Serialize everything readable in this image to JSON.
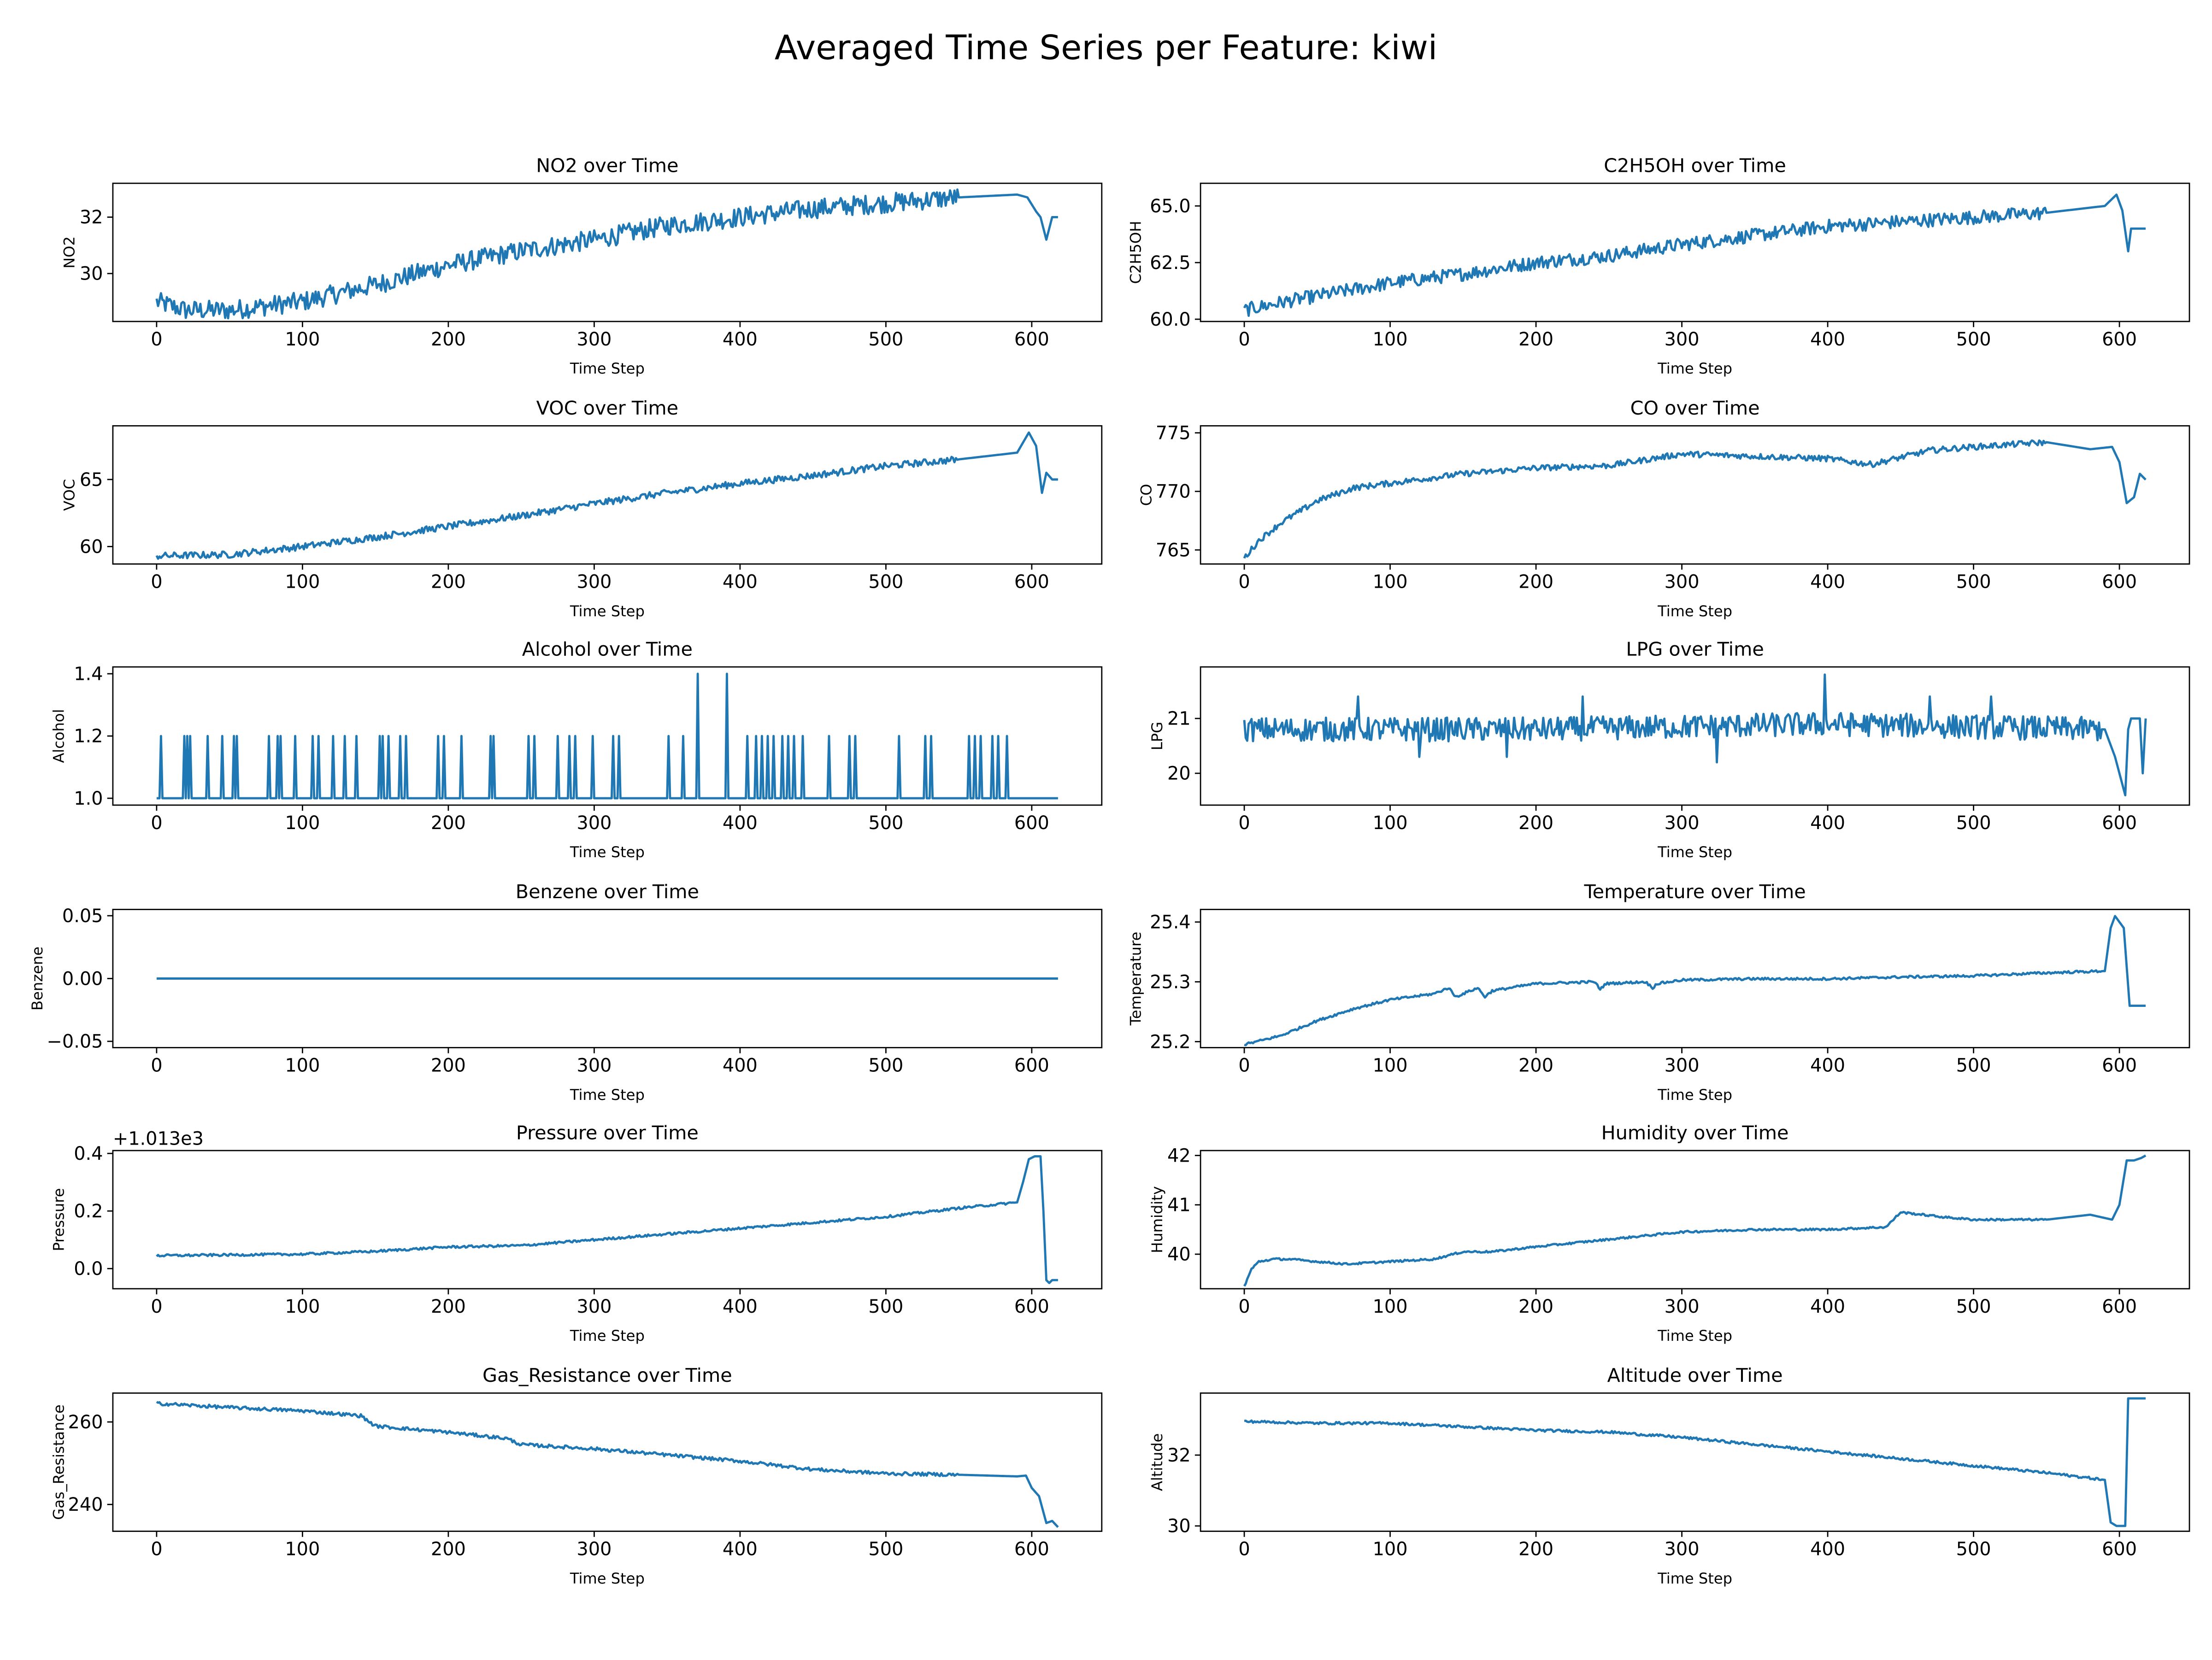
{
  "figure": {
    "title": "Averaged Time Series per Feature: kiwi",
    "line_color": "#1f77b4",
    "xlabel": "Time Step"
  },
  "chart_data": [
    {
      "type": "line",
      "title": "NO2 over Time",
      "xlabel": "Time Step",
      "ylabel": "NO2",
      "xlim": [
        -30,
        648
      ],
      "ylim": [
        28.3,
        33.2
      ],
      "xticks": [
        0,
        100,
        200,
        300,
        400,
        500,
        600
      ],
      "yticks": [
        30,
        32
      ],
      "ytick_labels": [
        "30",
        "32"
      ],
      "noise": 0.35,
      "spikes": [],
      "series": [
        {
          "x": [
            0,
            20,
            50,
            100,
            150,
            200,
            250,
            300,
            350,
            400,
            450,
            500,
            550,
            590,
            597,
            603,
            606,
            610,
            614,
            618
          ],
          "y": [
            29.0,
            28.7,
            28.7,
            29.0,
            29.6,
            30.3,
            30.8,
            31.2,
            31.7,
            32.0,
            32.3,
            32.5,
            32.7,
            32.8,
            32.7,
            32.2,
            32.0,
            31.2,
            32.0,
            32.0
          ]
        }
      ]
    },
    {
      "type": "line",
      "title": "C2H5OH over Time",
      "xlabel": "Time Step",
      "ylabel": "C2H5OH",
      "xlim": [
        -30,
        648
      ],
      "ylim": [
        59.9,
        66.0
      ],
      "xticks": [
        0,
        100,
        200,
        300,
        400,
        500,
        600
      ],
      "yticks": [
        60.0,
        62.5,
        65.0
      ],
      "ytick_labels": [
        "60.0",
        "62.5",
        "65.0"
      ],
      "noise": 0.3,
      "spikes": [],
      "series": [
        {
          "x": [
            0,
            30,
            100,
            150,
            200,
            250,
            300,
            350,
            400,
            450,
            500,
            550,
            590,
            598,
            602,
            606,
            608,
            612,
            618
          ],
          "y": [
            60.4,
            60.8,
            61.6,
            62.0,
            62.5,
            62.8,
            63.3,
            63.7,
            64.1,
            64.3,
            64.5,
            64.7,
            65.0,
            65.5,
            64.8,
            63.0,
            64.0,
            64.0,
            64.0
          ]
        }
      ]
    },
    {
      "type": "line",
      "title": "VOC over Time",
      "xlabel": "Time Step",
      "ylabel": "VOC",
      "xlim": [
        -30,
        648
      ],
      "ylim": [
        58.7,
        69.0
      ],
      "xticks": [
        0,
        100,
        200,
        300,
        400,
        500,
        600
      ],
      "yticks": [
        60,
        65
      ],
      "ytick_labels": [
        "60",
        "65"
      ],
      "noise": 0.25,
      "spikes": [],
      "series": [
        {
          "x": [
            0,
            50,
            100,
            150,
            200,
            250,
            300,
            350,
            400,
            450,
            500,
            550,
            590,
            598,
            603,
            607,
            610,
            614,
            618
          ],
          "y": [
            59.3,
            59.4,
            60.0,
            60.7,
            61.5,
            62.3,
            63.2,
            64.0,
            64.7,
            65.3,
            66.0,
            66.5,
            67.0,
            68.5,
            67.5,
            64.0,
            65.5,
            65.0,
            65.0
          ]
        }
      ]
    },
    {
      "type": "line",
      "title": "CO over Time",
      "xlabel": "Time Step",
      "ylabel": "CO",
      "xlim": [
        -30,
        648
      ],
      "ylim": [
        763.8,
        775.6
      ],
      "xticks": [
        0,
        100,
        200,
        300,
        400,
        500,
        600
      ],
      "yticks": [
        765,
        770,
        775
      ],
      "ytick_labels": [
        "765",
        "770",
        "775"
      ],
      "noise": 0.25,
      "spikes": [],
      "series": [
        {
          "x": [
            0,
            10,
            25,
            50,
            75,
            100,
            150,
            200,
            250,
            300,
            350,
            400,
            430,
            470,
            500,
            550,
            580,
            595,
            600,
            605,
            610,
            614,
            618
          ],
          "y": [
            764.3,
            765.8,
            767.3,
            769.2,
            770.3,
            770.7,
            771.5,
            772.0,
            772.2,
            773.2,
            773.0,
            772.8,
            772.3,
            773.5,
            773.8,
            774.2,
            773.6,
            773.8,
            772.5,
            769.0,
            769.5,
            771.5,
            771.0
          ]
        }
      ]
    },
    {
      "type": "line",
      "title": "Alcohol over Time",
      "xlabel": "Time Step",
      "ylabel": "Alcohol",
      "xlim": [
        -30,
        648
      ],
      "ylim": [
        0.978,
        1.422
      ],
      "xticks": [
        0,
        100,
        200,
        300,
        400,
        500,
        600
      ],
      "yticks": [
        1.0,
        1.2,
        1.4
      ],
      "ytick_labels": [
        "1.0",
        "1.2",
        "1.4"
      ],
      "noise": 0,
      "spikes": [
        [
          3,
          1.2
        ],
        [
          19,
          1.2
        ],
        [
          21,
          1.2
        ],
        [
          23,
          1.2
        ],
        [
          35,
          1.2
        ],
        [
          45,
          1.2
        ],
        [
          53,
          1.2
        ],
        [
          55,
          1.2
        ],
        [
          77,
          1.2
        ],
        [
          83,
          1.2
        ],
        [
          85,
          1.2
        ],
        [
          95,
          1.2
        ],
        [
          107,
          1.2
        ],
        [
          111,
          1.2
        ],
        [
          121,
          1.2
        ],
        [
          129,
          1.2
        ],
        [
          137,
          1.2
        ],
        [
          153,
          1.2
        ],
        [
          155,
          1.2
        ],
        [
          159,
          1.2
        ],
        [
          167,
          1.2
        ],
        [
          171,
          1.2
        ],
        [
          193,
          1.2
        ],
        [
          197,
          1.2
        ],
        [
          209,
          1.2
        ],
        [
          229,
          1.2
        ],
        [
          231,
          1.2
        ],
        [
          255,
          1.2
        ],
        [
          259,
          1.2
        ],
        [
          275,
          1.2
        ],
        [
          283,
          1.2
        ],
        [
          287,
          1.2
        ],
        [
          299,
          1.2
        ],
        [
          313,
          1.2
        ],
        [
          317,
          1.2
        ],
        [
          351,
          1.2
        ],
        [
          361,
          1.2
        ],
        [
          371,
          1.4
        ],
        [
          391,
          1.4
        ],
        [
          405,
          1.2
        ],
        [
          411,
          1.2
        ],
        [
          415,
          1.2
        ],
        [
          419,
          1.2
        ],
        [
          423,
          1.2
        ],
        [
          429,
          1.2
        ],
        [
          433,
          1.2
        ],
        [
          437,
          1.2
        ],
        [
          443,
          1.2
        ],
        [
          461,
          1.2
        ],
        [
          475,
          1.2
        ],
        [
          479,
          1.2
        ],
        [
          509,
          1.2
        ],
        [
          527,
          1.2
        ],
        [
          531,
          1.2
        ],
        [
          557,
          1.2
        ],
        [
          561,
          1.2
        ],
        [
          565,
          1.2
        ],
        [
          573,
          1.2
        ],
        [
          577,
          1.2
        ],
        [
          583,
          1.2
        ]
      ],
      "series": [
        {
          "x": [
            0,
            618
          ],
          "y": [
            1.0,
            1.0
          ]
        }
      ]
    },
    {
      "type": "line",
      "title": "LPG over Time",
      "xlabel": "Time Step",
      "ylabel": "LPG",
      "xlim": [
        -30,
        648
      ],
      "ylim": [
        19.42,
        21.94
      ],
      "xticks": [
        0,
        100,
        200,
        300,
        400,
        500,
        600
      ],
      "yticks": [
        20,
        21
      ],
      "ytick_labels": [
        "20",
        "21"
      ],
      "noise": 0.22,
      "spikes": [
        [
          78,
          21.4
        ],
        [
          120,
          20.3
        ],
        [
          180,
          20.3
        ],
        [
          232,
          21.4
        ],
        [
          324,
          20.2
        ],
        [
          398,
          21.8
        ],
        [
          470,
          21.4
        ],
        [
          512,
          21.4
        ]
      ],
      "series": [
        {
          "x": [
            0,
            200,
            400,
            590,
            597,
            600,
            604,
            606,
            608,
            612,
            614,
            616,
            618
          ],
          "y": [
            20.8,
            20.8,
            20.9,
            20.8,
            20.3,
            20.0,
            19.6,
            20.8,
            21.0,
            21.0,
            21.0,
            20.0,
            21.0
          ]
        }
      ]
    },
    {
      "type": "line",
      "title": "Benzene over Time",
      "xlabel": "Time Step",
      "ylabel": "Benzene",
      "xlim": [
        -30,
        648
      ],
      "ylim": [
        -0.055,
        0.055
      ],
      "xticks": [
        0,
        100,
        200,
        300,
        400,
        500,
        600
      ],
      "yticks": [
        -0.05,
        0,
        0.05
      ],
      "ytick_labels": [
        "−0.05",
        "0.00",
        "0.05"
      ],
      "noise": 0,
      "spikes": [],
      "series": [
        {
          "x": [
            0,
            618
          ],
          "y": [
            0,
            0
          ]
        }
      ]
    },
    {
      "type": "line",
      "title": "Temperature over Time",
      "xlabel": "Time Step",
      "ylabel": "Temperature",
      "xlim": [
        -30,
        648
      ],
      "ylim": [
        25.19,
        25.421
      ],
      "xticks": [
        0,
        100,
        200,
        300,
        400,
        500,
        600
      ],
      "yticks": [
        25.2,
        25.3,
        25.4
      ],
      "ytick_labels": [
        "25.2",
        "25.3",
        "25.4"
      ],
      "noise": 0.002,
      "spikes": [],
      "series": [
        {
          "x": [
            0,
            25,
            50,
            75,
            100,
            130,
            140,
            145,
            160,
            165,
            170,
            200,
            240,
            244,
            248,
            275,
            280,
            283,
            300,
            350,
            400,
            450,
            500,
            550,
            590,
            594,
            597,
            600,
            603,
            607,
            610,
            612,
            618
          ],
          "y": [
            25.195,
            25.21,
            25.235,
            25.255,
            25.27,
            25.28,
            25.29,
            25.275,
            25.29,
            25.275,
            25.285,
            25.297,
            25.3,
            25.288,
            25.297,
            25.3,
            25.29,
            25.297,
            25.303,
            25.305,
            25.305,
            25.308,
            25.31,
            25.315,
            25.318,
            25.39,
            25.41,
            25.4,
            25.39,
            25.26,
            25.26,
            25.26,
            25.26
          ]
        }
      ]
    },
    {
      "type": "line",
      "title": "Pressure over Time",
      "xlabel": "Time Step",
      "ylabel": "Pressure",
      "offset_label": "+1.013e3",
      "xlim": [
        -30,
        648
      ],
      "ylim": [
        -0.07,
        0.41
      ],
      "xticks": [
        0,
        100,
        200,
        300,
        400,
        500,
        600
      ],
      "yticks": [
        0.0,
        0.2,
        0.4
      ],
      "ytick_labels": [
        "0.0",
        "0.2",
        "0.4"
      ],
      "noise": 0.004,
      "spikes": [],
      "series": [
        {
          "x": [
            0,
            100,
            150,
            200,
            250,
            300,
            350,
            400,
            450,
            500,
            550,
            590,
            594,
            598,
            602,
            606,
            608,
            610,
            612,
            614,
            618
          ],
          "y": [
            0.045,
            0.05,
            0.06,
            0.075,
            0.08,
            0.1,
            0.12,
            0.14,
            0.16,
            0.18,
            0.21,
            0.23,
            0.3,
            0.38,
            0.39,
            0.39,
            0.2,
            -0.04,
            -0.05,
            -0.04,
            -0.04
          ]
        }
      ]
    },
    {
      "type": "line",
      "title": "Humidity over Time",
      "xlabel": "Time Step",
      "ylabel": "Humidity",
      "xlim": [
        -30,
        648
      ],
      "ylim": [
        39.3,
        42.1
      ],
      "xticks": [
        0,
        100,
        200,
        300,
        400,
        500,
        600
      ],
      "yticks": [
        40,
        41,
        42
      ],
      "ytick_labels": [
        "40",
        "41",
        "42"
      ],
      "noise": 0.02,
      "spikes": [],
      "series": [
        {
          "x": [
            0,
            5,
            10,
            20,
            30,
            50,
            70,
            100,
            130,
            150,
            170,
            200,
            250,
            300,
            350,
            400,
            440,
            450,
            480,
            500,
            550,
            580,
            595,
            600,
            605,
            610,
            615,
            618
          ],
          "y": [
            39.35,
            39.7,
            39.85,
            39.9,
            39.9,
            39.85,
            39.8,
            39.85,
            39.9,
            40.05,
            40.05,
            40.15,
            40.3,
            40.45,
            40.5,
            40.5,
            40.55,
            40.85,
            40.75,
            40.7,
            40.7,
            40.8,
            40.7,
            41.0,
            41.9,
            41.9,
            41.95,
            42.0
          ]
        }
      ]
    },
    {
      "type": "line",
      "title": "Gas_Resistance over Time",
      "xlabel": "Time Step",
      "ylabel": "Gas_Resistance",
      "xlim": [
        -30,
        648
      ],
      "ylim": [
        233.5,
        267.0
      ],
      "xticks": [
        0,
        100,
        200,
        300,
        400,
        500,
        600
      ],
      "yticks": [
        240,
        260
      ],
      "ytick_labels": [
        "240",
        "260"
      ],
      "noise": 0.4,
      "spikes": [],
      "series": [
        {
          "x": [
            0,
            50,
            100,
            140,
            150,
            200,
            240,
            250,
            300,
            350,
            400,
            450,
            500,
            550,
            590,
            596,
            600,
            605,
            610,
            614,
            618
          ],
          "y": [
            264.5,
            263.5,
            262.7,
            261.5,
            259.0,
            257.5,
            256.0,
            254.5,
            253.5,
            252.0,
            250.5,
            248.5,
            247.5,
            247.2,
            246.8,
            247.0,
            244.0,
            242.0,
            235.5,
            236.0,
            234.5
          ]
        }
      ]
    },
    {
      "type": "line",
      "title": "Altitude over Time",
      "xlabel": "Time Step",
      "ylabel": "Altitude",
      "xlim": [
        -30,
        648
      ],
      "ylim": [
        29.85,
        33.75
      ],
      "xticks": [
        0,
        100,
        200,
        300,
        400,
        500,
        600
      ],
      "yticks": [
        30,
        32
      ],
      "ytick_labels": [
        "30",
        "32"
      ],
      "noise": 0.035,
      "spikes": [],
      "series": [
        {
          "x": [
            0,
            50,
            100,
            150,
            200,
            250,
            300,
            350,
            400,
            450,
            500,
            550,
            590,
            594,
            598,
            602,
            604,
            606,
            608,
            612,
            618
          ],
          "y": [
            32.95,
            32.9,
            32.9,
            32.8,
            32.7,
            32.65,
            32.5,
            32.3,
            32.1,
            31.9,
            31.7,
            31.5,
            31.3,
            30.1,
            30.0,
            30.0,
            30.0,
            33.6,
            33.6,
            33.6,
            33.6
          ]
        }
      ]
    }
  ]
}
